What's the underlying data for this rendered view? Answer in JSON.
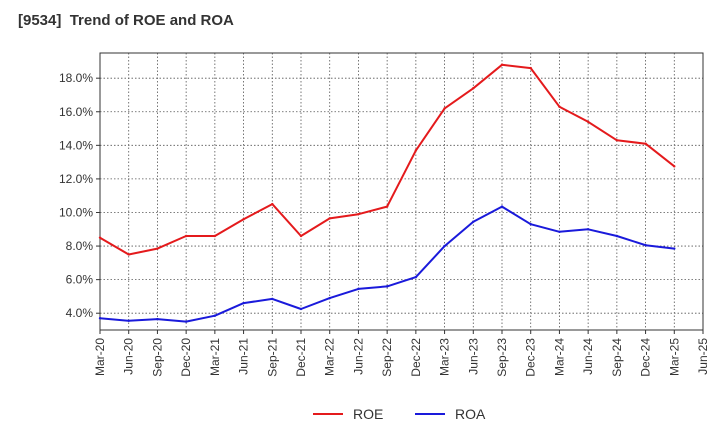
{
  "chart_data": {
    "type": "line",
    "title": "[9534]  Trend of ROE and ROA",
    "categories": [
      "Mar-20",
      "Jun-20",
      "Sep-20",
      "Dec-20",
      "Mar-21",
      "Jun-21",
      "Sep-21",
      "Dec-21",
      "Mar-22",
      "Jun-22",
      "Sep-22",
      "Dec-22",
      "Mar-23",
      "Jun-23",
      "Sep-23",
      "Dec-23",
      "Mar-24",
      "Jun-24",
      "Sep-24",
      "Dec-24",
      "Mar-25",
      "Jun-25"
    ],
    "series": [
      {
        "name": "ROE",
        "color": "#e41a1c",
        "values": [
          8.5,
          7.5,
          7.85,
          8.6,
          8.6,
          9.6,
          10.5,
          8.6,
          9.65,
          9.9,
          10.35,
          13.7,
          16.2,
          17.4,
          18.8,
          18.6,
          16.3,
          15.4,
          14.3,
          14.1,
          12.75,
          null
        ]
      },
      {
        "name": "ROA",
        "color": "#1a1adb",
        "values": [
          3.7,
          3.55,
          3.65,
          3.5,
          3.85,
          4.6,
          4.85,
          4.25,
          4.9,
          5.45,
          5.6,
          6.15,
          8.0,
          9.45,
          10.35,
          9.3,
          8.85,
          9.0,
          8.6,
          8.05,
          7.85,
          null
        ]
      }
    ],
    "y_ticks": [
      "4.0%",
      "6.0%",
      "8.0%",
      "10.0%",
      "12.0%",
      "14.0%",
      "16.0%",
      "18.0%"
    ],
    "ylim": [
      3.0,
      19.5
    ],
    "grid": true,
    "legend_position": "bottom-center"
  }
}
